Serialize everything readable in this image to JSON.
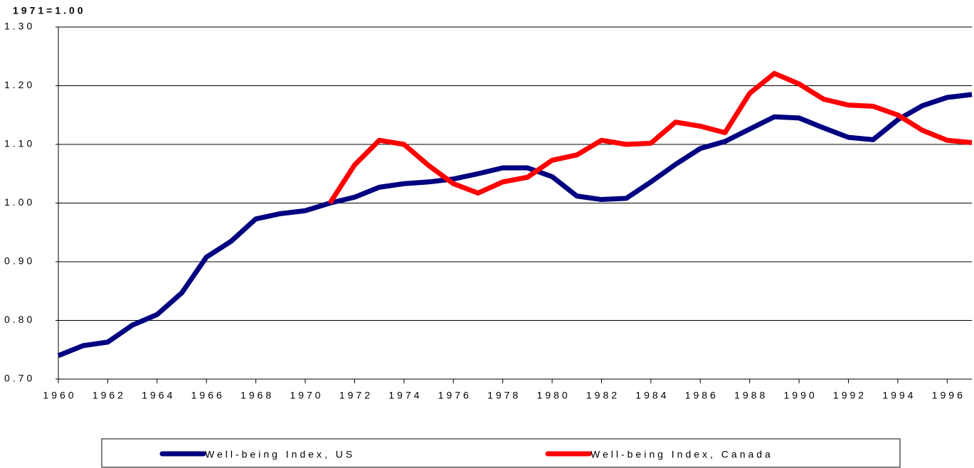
{
  "chart_data": {
    "type": "line",
    "title": "1971=1.00",
    "x": [
      1960,
      1961,
      1962,
      1963,
      1964,
      1965,
      1966,
      1967,
      1968,
      1969,
      1970,
      1971,
      1972,
      1973,
      1974,
      1975,
      1976,
      1977,
      1978,
      1979,
      1980,
      1981,
      1982,
      1983,
      1984,
      1985,
      1986,
      1987,
      1988,
      1989,
      1990,
      1991,
      1992,
      1993,
      1994,
      1995,
      1996,
      1997
    ],
    "series": [
      {
        "name": "Well-being Index, US",
        "color": "#000080",
        "values": [
          0.74,
          0.757,
          0.763,
          0.792,
          0.81,
          0.847,
          0.908,
          0.935,
          0.973,
          0.982,
          0.987,
          1.0,
          1.01,
          1.027,
          1.033,
          1.036,
          1.041,
          1.05,
          1.06,
          1.06,
          1.045,
          1.012,
          1.006,
          1.008,
          1.036,
          1.066,
          1.093,
          1.105,
          1.126,
          1.147,
          1.145,
          1.128,
          1.112,
          1.108,
          1.142,
          1.166,
          1.18,
          1.185
        ]
      },
      {
        "name": "Well-being Index, Canada",
        "color": "#ff0000",
        "values": [
          null,
          null,
          null,
          null,
          null,
          null,
          null,
          null,
          null,
          null,
          null,
          1.0,
          1.065,
          1.107,
          1.1,
          1.064,
          1.033,
          1.017,
          1.036,
          1.044,
          1.073,
          1.082,
          1.107,
          1.1,
          1.102,
          1.138,
          1.131,
          1.12,
          1.187,
          1.221,
          1.203,
          1.177,
          1.167,
          1.165,
          1.15,
          1.124,
          1.107,
          1.103
        ]
      }
    ],
    "xlim": [
      1960,
      1997
    ],
    "xticks": [
      1960,
      1962,
      1964,
      1966,
      1968,
      1970,
      1972,
      1974,
      1976,
      1978,
      1980,
      1982,
      1984,
      1986,
      1988,
      1990,
      1992,
      1994,
      1996
    ],
    "ylim": [
      0.7,
      1.3
    ],
    "yticks": [
      {
        "value": 0.7,
        "label": "0.70"
      },
      {
        "value": 0.8,
        "label": "0.80"
      },
      {
        "value": 0.9,
        "label": "0.90"
      },
      {
        "value": 1.0,
        "label": "1.00"
      },
      {
        "value": 1.1,
        "label": "1.10"
      },
      {
        "value": 1.2,
        "label": "1.20"
      },
      {
        "value": 1.3,
        "label": "1.30"
      }
    ],
    "grid": true,
    "legend": "bottom"
  }
}
